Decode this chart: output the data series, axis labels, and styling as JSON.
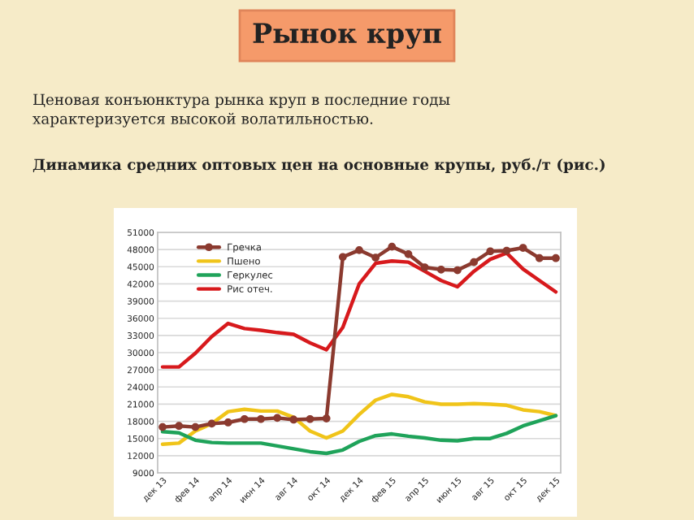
{
  "chart_data": {
    "type": "line",
    "title": "Рынок круп",
    "subtitle": "Ценовая конъюнктура рынка круп в последние годы\nхарактеризуется высокой волатильностью.",
    "annotations": [
      "Динамика средних оптовых цен на основные крупы, руб./т (рис.)"
    ],
    "categories": [
      "дек 13",
      null,
      "фев 14",
      null,
      "апр 14",
      null,
      "июн 14",
      null,
      "авг 14",
      null,
      "окт 14",
      null,
      "дек 14",
      null,
      "фев 15",
      null,
      "апр 15",
      null,
      "июн 15",
      null,
      "авг 15",
      null,
      "окт 15",
      null,
      "дек 15"
    ],
    "series": [
      {
        "name": "Гречка",
        "color": "#8b3a2f",
        "marker": "circle",
        "values": [
          17000,
          17200,
          17000,
          17600,
          17800,
          18400,
          18400,
          18600,
          18300,
          18400,
          18500,
          46700,
          47900,
          46600,
          48500,
          47200,
          44900,
          44500,
          44400,
          45800,
          47700,
          47800,
          48300,
          46500,
          46500
        ]
      },
      {
        "name": "Пшено",
        "color": "#f0c419",
        "values": [
          14000,
          14200,
          16300,
          17600,
          19700,
          20100,
          19800,
          19800,
          18700,
          16300,
          15100,
          16300,
          19200,
          21700,
          22700,
          22300,
          21400,
          21000,
          21000,
          21100,
          21000,
          20800,
          20000,
          19700,
          19000
        ]
      },
      {
        "name": "Геркулес",
        "color": "#1fa35a",
        "values": [
          16200,
          16000,
          14700,
          14300,
          14200,
          14200,
          14200,
          13700,
          13200,
          12700,
          12400,
          13000,
          14500,
          15500,
          15800,
          15400,
          15100,
          14700,
          14600,
          15000,
          15000,
          15900,
          17200,
          18100,
          19000
        ]
      },
      {
        "name": "Рис отеч.",
        "color": "#d7191c",
        "values": [
          27500,
          27500,
          29900,
          32800,
          35100,
          34200,
          33900,
          33500,
          33200,
          31700,
          30500,
          34400,
          42000,
          45600,
          46000,
          45800,
          44200,
          42600,
          41500,
          44200,
          46300,
          47400,
          44600,
          42600,
          40600
        ]
      }
    ],
    "ylim": [
      9000,
      51000
    ],
    "yticks": [
      9000,
      12000,
      15000,
      18000,
      21000,
      24000,
      27000,
      30000,
      33000,
      36000,
      39000,
      42000,
      45000,
      48000,
      51000
    ],
    "grid": "y",
    "legend": "top left"
  }
}
